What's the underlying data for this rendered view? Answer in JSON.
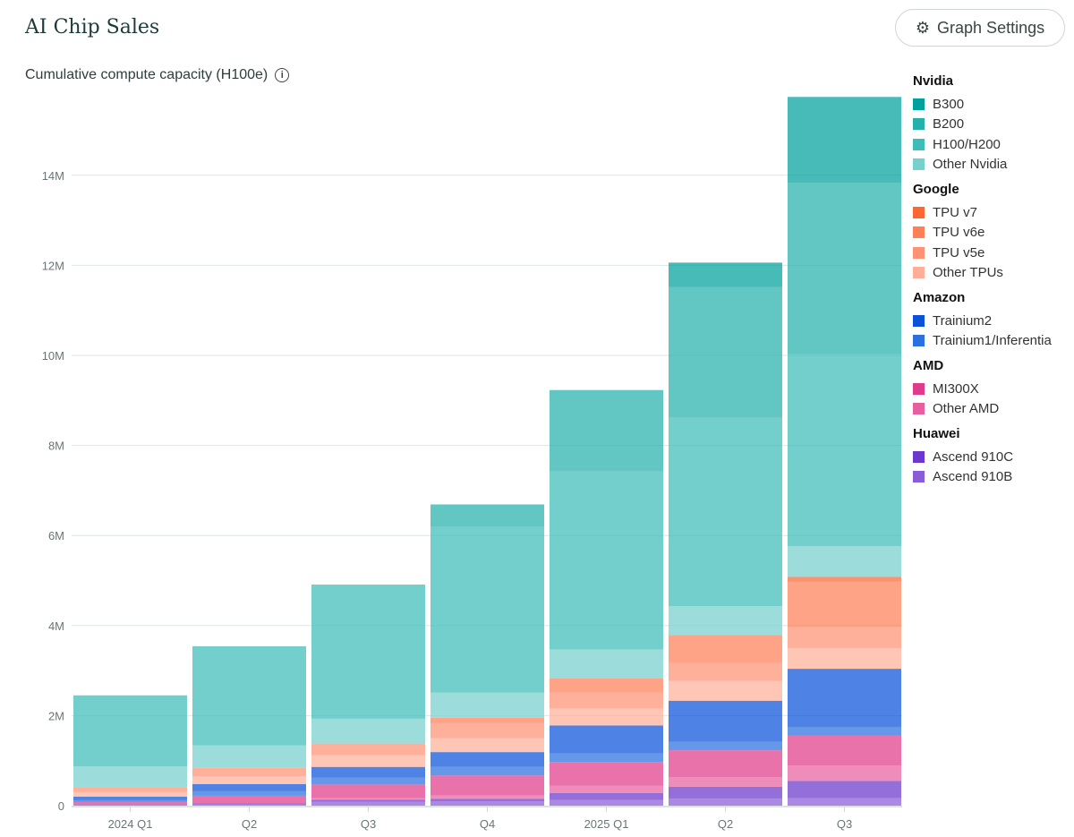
{
  "header": {
    "title": "AI Chip Sales",
    "settings_label": "Graph Settings",
    "settings_icon": "gear-icon"
  },
  "chart_data": {
    "type": "bar",
    "stacked": true,
    "title": "AI Chip Sales",
    "ylabel": "Cumulative compute capacity (H100e)",
    "ylim": [
      0,
      16
    ],
    "yunit": "M",
    "yticks": [
      "0",
      "2M",
      "4M",
      "6M",
      "8M",
      "10M",
      "12M",
      "14M"
    ],
    "grid": true,
    "legend_position": "right",
    "categories": [
      "2024 Q1",
      "Q2",
      "Q3",
      "Q4",
      "2025 Q1",
      "Q2",
      "Q3"
    ],
    "legend_groups": [
      {
        "name": "Nvidia",
        "items": [
          "B300",
          "B200",
          "H100/H200",
          "Other Nvidia"
        ]
      },
      {
        "name": "Google",
        "items": [
          "TPU v7",
          "TPU v6e",
          "TPU v5e",
          "Other TPUs"
        ]
      },
      {
        "name": "Amazon",
        "items": [
          "Trainium2",
          "Trainium1/Inferentia"
        ]
      },
      {
        "name": "AMD",
        "items": [
          "MI300X",
          "Other AMD"
        ]
      },
      {
        "name": "Huawei",
        "items": [
          "Ascend 910C",
          "Ascend 910B"
        ]
      }
    ],
    "series": [
      {
        "name": "Ascend 910B",
        "color": "#8a5cd8",
        "values": [
          0.02,
          0.03,
          0.09,
          0.1,
          0.13,
          0.16,
          0.17
        ]
      },
      {
        "name": "Ascend 910C",
        "color": "#6a38cc",
        "values": [
          0.01,
          0.02,
          0.04,
          0.05,
          0.15,
          0.26,
          0.38
        ]
      },
      {
        "name": "Other AMD",
        "color": "#e85fa0",
        "values": [
          0.01,
          0.0,
          0.04,
          0.08,
          0.16,
          0.21,
          0.34
        ]
      },
      {
        "name": "MI300X",
        "color": "#e03b8b",
        "values": [
          0.04,
          0.17,
          0.3,
          0.44,
          0.53,
          0.6,
          0.67
        ]
      },
      {
        "name": "Trainium1/Inferentia",
        "color": "#2b70e0",
        "values": [
          0.04,
          0.1,
          0.15,
          0.19,
          0.19,
          0.19,
          0.19
        ]
      },
      {
        "name": "Trainium2",
        "color": "#0b52db",
        "values": [
          0.08,
          0.16,
          0.24,
          0.33,
          0.62,
          0.91,
          1.29
        ]
      },
      {
        "name": "Other TPUs",
        "color": "#ffae98",
        "values": [
          0.1,
          0.17,
          0.26,
          0.31,
          0.38,
          0.44,
          0.46
        ]
      },
      {
        "name": "TPU v5e",
        "color": "#ff9275",
        "values": [
          0.11,
          0.19,
          0.26,
          0.33,
          0.35,
          0.4,
          0.46
        ]
      },
      {
        "name": "TPU v6e",
        "color": "#ff7f57",
        "values": [
          0,
          0,
          0,
          0.12,
          0.32,
          0.62,
          1.02
        ]
      },
      {
        "name": "TPU v7",
        "color": "#ff6633",
        "values": [
          0,
          0,
          0,
          0,
          0,
          0,
          0.1
        ]
      },
      {
        "name": "Other Nvidia",
        "color": "#76d0ce",
        "values": [
          0.46,
          0.5,
          0.55,
          0.56,
          0.64,
          0.64,
          0.68
        ]
      },
      {
        "name": "H100/H200",
        "color": "#3dbdb8",
        "values": [
          1.58,
          2.2,
          2.98,
          3.68,
          3.95,
          4.19,
          4.27
        ]
      },
      {
        "name": "B200",
        "color": "#25b0ab",
        "values": [
          0,
          0,
          0,
          0.5,
          1.81,
          2.9,
          3.8
        ]
      },
      {
        "name": "B300",
        "color": "#00a19b",
        "values": [
          0,
          0,
          0,
          0,
          0,
          0.54,
          1.91
        ]
      }
    ]
  }
}
